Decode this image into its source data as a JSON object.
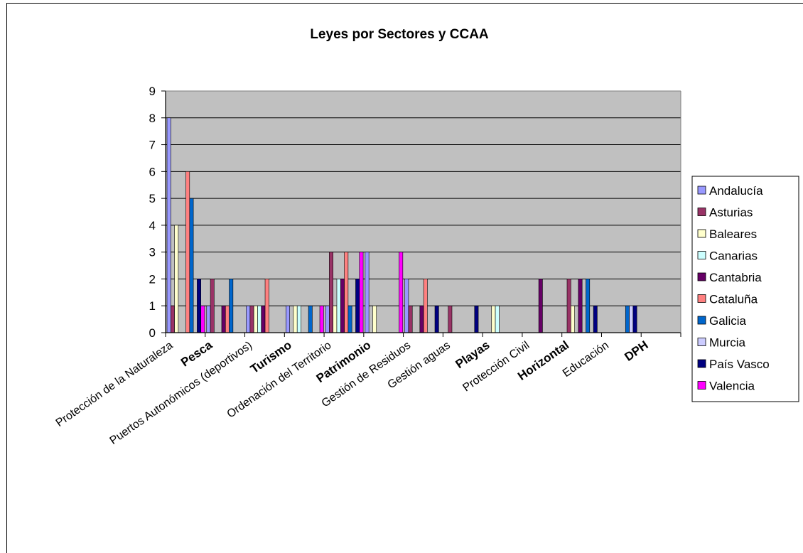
{
  "chart_data": {
    "type": "bar",
    "title": "Leyes por Sectores y CCAA",
    "xlabel": "",
    "ylabel": "",
    "ylim": [
      0,
      9
    ],
    "yticks": [
      0,
      1,
      2,
      3,
      4,
      5,
      6,
      7,
      8,
      9
    ],
    "grid": true,
    "legend_position": "right",
    "plot_background": "#c0c0c0",
    "categories": [
      "Protección de la Naturaleza",
      "Pesca",
      "Puertos Autonómicos (deportivos)",
      "Turismo",
      "Ordenación del Territorio",
      "Patrimonio",
      "Gestión de Residuos",
      "Gestión aguas",
      "Playas",
      "Protección Civil",
      "Horizontal",
      "Educación",
      "DPH"
    ],
    "bold_categories": [
      "Pesca",
      "Turismo",
      "Patrimonio",
      "Playas",
      "Horizontal",
      "DPH"
    ],
    "series": [
      {
        "name": "Andalucía",
        "color": "#9999ff",
        "values": [
          8,
          1,
          1,
          1,
          1,
          3,
          2,
          0,
          0,
          0,
          0,
          0,
          0
        ]
      },
      {
        "name": "Asturias",
        "color": "#993366",
        "values": [
          1,
          2,
          1,
          0,
          3,
          0,
          1,
          1,
          0,
          0,
          2,
          0,
          0
        ]
      },
      {
        "name": "Baleares",
        "color": "#ffffcc",
        "values": [
          4,
          0,
          1,
          1,
          1,
          1,
          0,
          0,
          1,
          0,
          1,
          0,
          0
        ]
      },
      {
        "name": "Canarias",
        "color": "#ccffff",
        "values": [
          0,
          0,
          1,
          1,
          2,
          0,
          0,
          0,
          1,
          0,
          0,
          0,
          0
        ]
      },
      {
        "name": "Cantabria",
        "color": "#660066",
        "values": [
          0,
          1,
          1,
          0,
          2,
          0,
          1,
          0,
          0,
          2,
          2,
          0,
          0
        ]
      },
      {
        "name": "Cataluña",
        "color": "#ff8080",
        "values": [
          6,
          1,
          2,
          0,
          3,
          0,
          2,
          0,
          0,
          0,
          0,
          0,
          0
        ]
      },
      {
        "name": "Galicia",
        "color": "#0066cc",
        "values": [
          5,
          2,
          0,
          1,
          1,
          0,
          0,
          0,
          0,
          0,
          2,
          1,
          0
        ]
      },
      {
        "name": "Murcia",
        "color": "#ccccff",
        "values": [
          0,
          0,
          0,
          0,
          0,
          0,
          0,
          0,
          0,
          0,
          0,
          1,
          0
        ]
      },
      {
        "name": "País Vasco",
        "color": "#000080",
        "values": [
          2,
          0,
          0,
          0,
          2,
          0,
          1,
          1,
          0,
          0,
          1,
          1,
          0
        ]
      },
      {
        "name": "Valencia",
        "color": "#ff00ff",
        "values": [
          1,
          0,
          0,
          1,
          3,
          3,
          0,
          0,
          0,
          0,
          0,
          0,
          0
        ]
      }
    ]
  }
}
